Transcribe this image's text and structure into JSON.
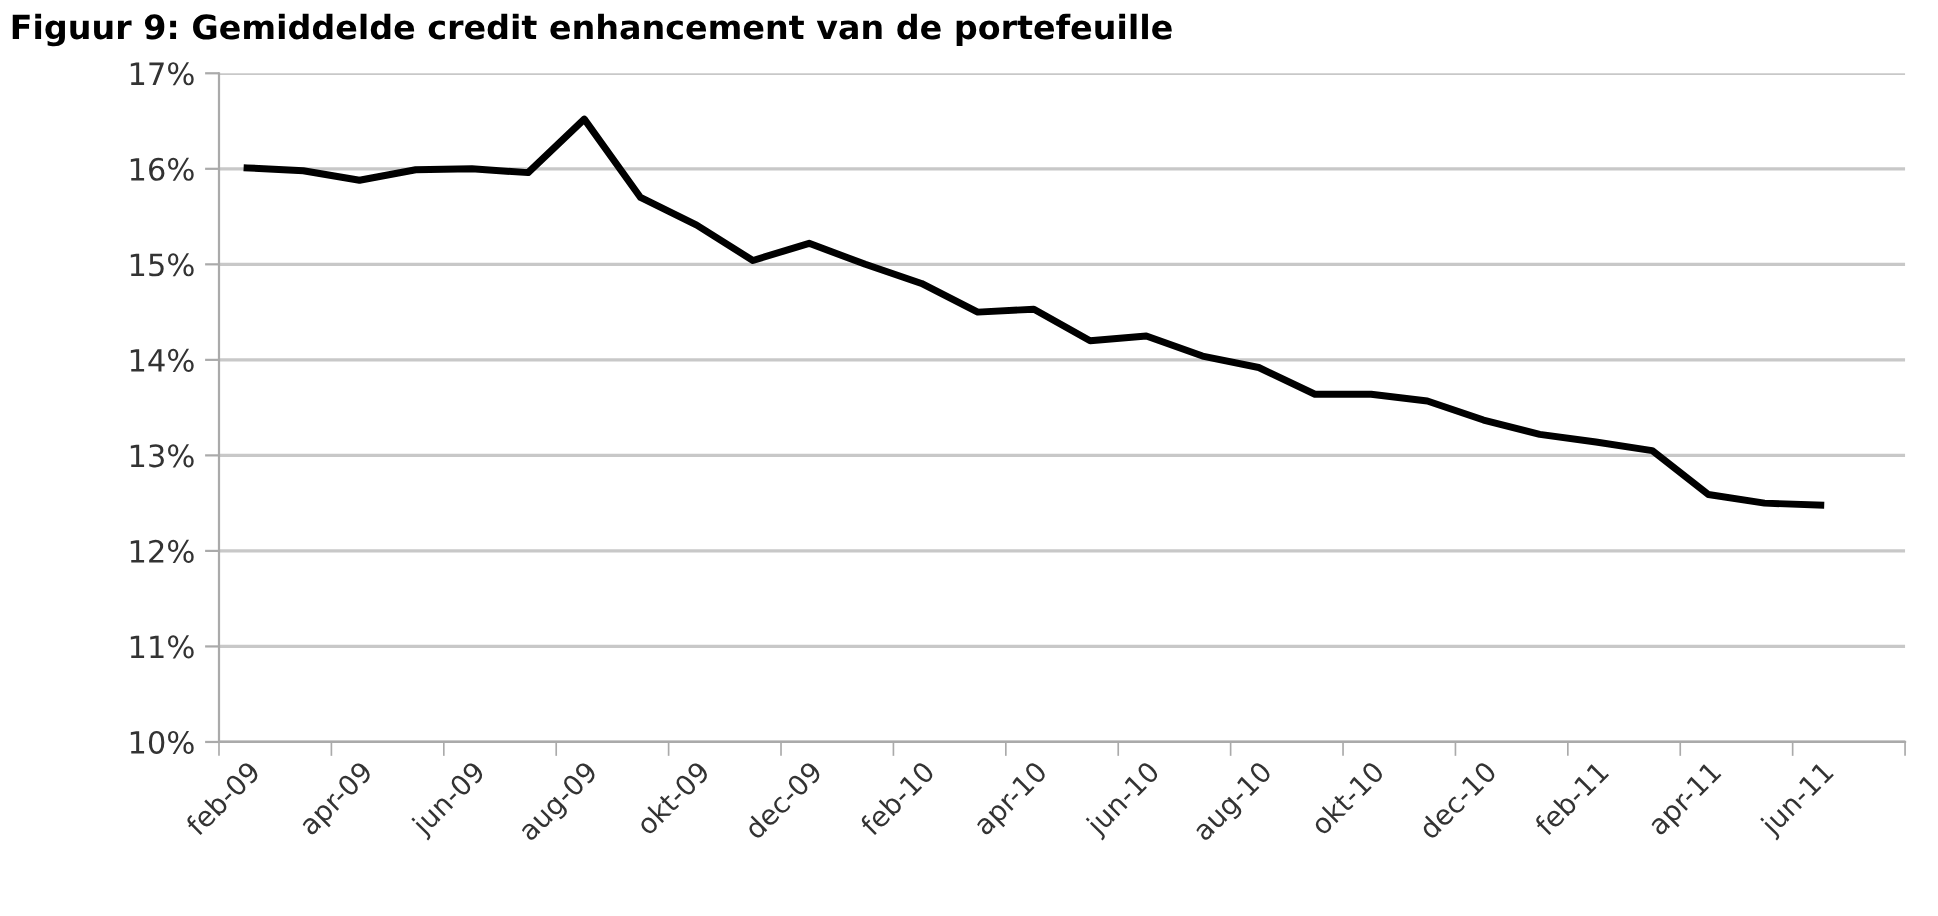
{
  "chart_data": {
    "type": "line",
    "title": "Figuur 9: Gemiddelde credit enhancement van de portefeuille",
    "categories": [
      "feb-09",
      null,
      "apr-09",
      null,
      "jun-09",
      null,
      "aug-09",
      null,
      "okt-09",
      null,
      "dec-09",
      null,
      "feb-10",
      null,
      "apr-10",
      null,
      "jun-10",
      null,
      "aug-10",
      null,
      "okt-10",
      null,
      "dec-10",
      null,
      "feb-11",
      null,
      "apr-11",
      null,
      "jun-11",
      null
    ],
    "series": [
      {
        "color": "#000000",
        "values": [
          16.01,
          15.98,
          15.88,
          15.99,
          16.0,
          15.96,
          16.52,
          15.7,
          15.41,
          15.04,
          15.22,
          15.0,
          14.8,
          14.5,
          14.53,
          14.2,
          14.25,
          14.04,
          13.92,
          13.64,
          13.64,
          13.57,
          13.37,
          13.22,
          13.14,
          13.05,
          12.59,
          12.5,
          12.48,
          null
        ]
      }
    ],
    "ylim": [
      10,
      17
    ],
    "yticks": [
      {
        "value": 10,
        "label": "10%"
      },
      {
        "value": 11,
        "label": "11%"
      },
      {
        "value": 12,
        "label": "12%"
      },
      {
        "value": 13,
        "label": "13%"
      },
      {
        "value": 14,
        "label": "14%"
      },
      {
        "value": 15,
        "label": "15%"
      },
      {
        "value": 16,
        "label": "16%"
      },
      {
        "value": 17,
        "label": "17%"
      }
    ],
    "grid": "y",
    "marker": "none",
    "line_style": "solid"
  }
}
